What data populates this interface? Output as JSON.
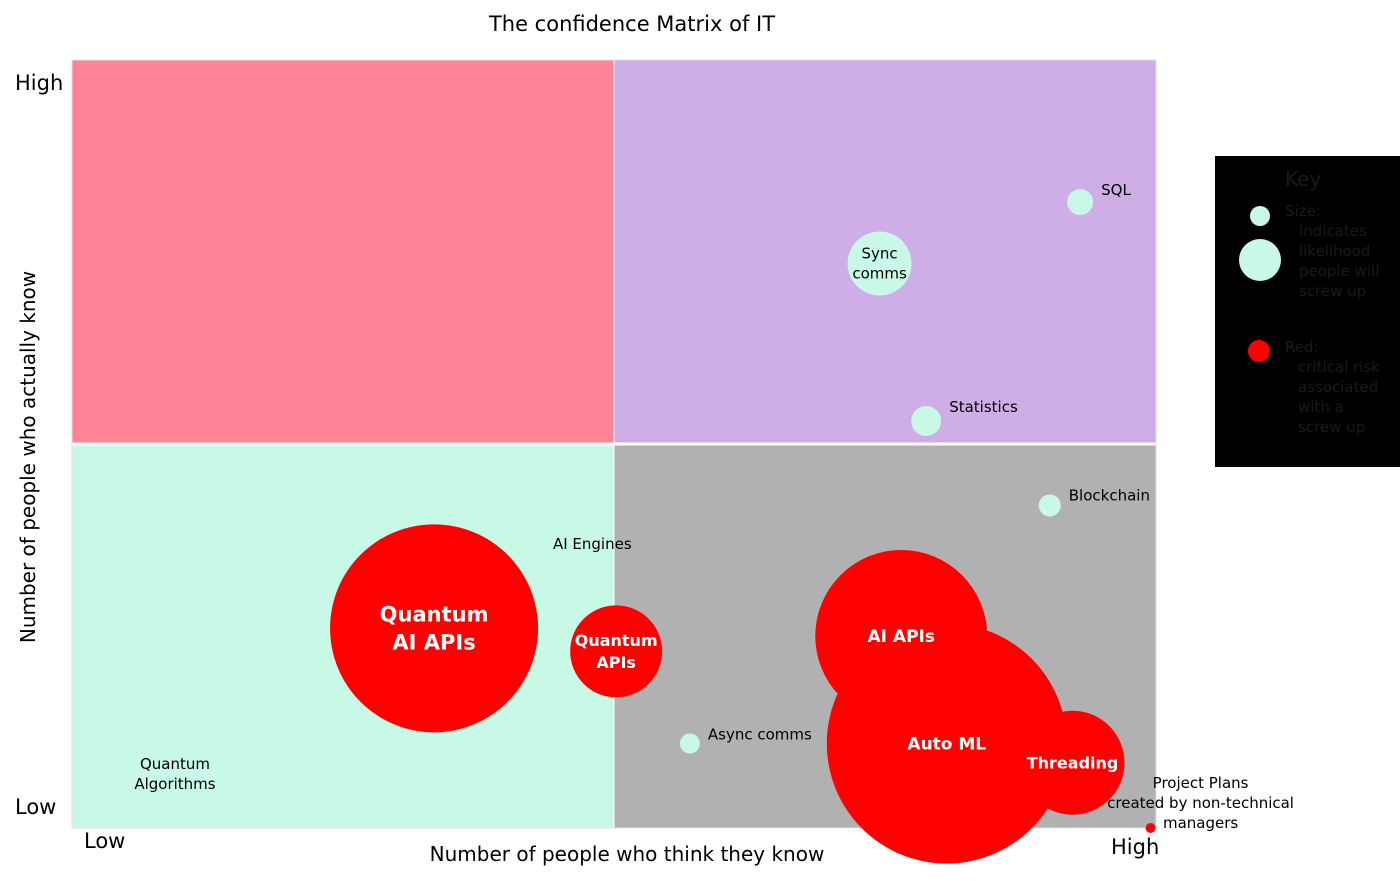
{
  "chart_data": {
    "type": "scatter",
    "title": "The confidence Matrix of IT",
    "xlabel": "Number of people who think they know",
    "ylabel": "Number of people who actually know",
    "x_ticks": {
      "low": "Low",
      "high": "High"
    },
    "y_ticks": {
      "low": "Low",
      "high": "High"
    },
    "xlim": [
      0,
      100
    ],
    "ylim": [
      0,
      100
    ],
    "quadrants": [
      {
        "x_range": [
          0,
          50
        ],
        "y_range": [
          50,
          100
        ],
        "color": "#ff8596"
      },
      {
        "x_range": [
          50,
          100
        ],
        "y_range": [
          50,
          100
        ],
        "color": "#cfade6"
      },
      {
        "x_range": [
          0,
          50
        ],
        "y_range": [
          0,
          50
        ],
        "color": "#c8f9e7"
      },
      {
        "x_range": [
          50,
          100
        ],
        "y_range": [
          0,
          50
        ],
        "color": "#b1b1b1"
      }
    ],
    "points": [
      {
        "label": "SQL",
        "lines": [
          "SQL"
        ],
        "x": 93,
        "y": 81.5,
        "size": 13,
        "critical": false,
        "label_pos": "right"
      },
      {
        "label": "Sync comms",
        "lines": [
          "Sync",
          "comms"
        ],
        "x": 74.5,
        "y": 73.5,
        "size": 32,
        "critical": false,
        "label_pos": "center"
      },
      {
        "label": "Statistics",
        "lines": [
          "Statistics"
        ],
        "x": 78.8,
        "y": 53,
        "size": 15,
        "critical": false,
        "label_pos": "right"
      },
      {
        "label": "Blockchain",
        "lines": [
          "Blockchain"
        ],
        "x": 90.2,
        "y": 42,
        "size": 11,
        "critical": false,
        "label_pos": "right"
      },
      {
        "label": "Async comms",
        "lines": [
          "Async comms"
        ],
        "x": 57,
        "y": 11,
        "size": 10,
        "critical": false,
        "label_pos": "right"
      },
      {
        "label": "AI Engines",
        "lines": [
          "AI Engines"
        ],
        "x": 48,
        "y": 37,
        "size": 0,
        "critical": false,
        "label_pos": "center"
      },
      {
        "label": "Quantum Algorithms",
        "lines": [
          "Quantum",
          "Algorithms"
        ],
        "x": 9.5,
        "y": 7,
        "size": 0,
        "critical": false,
        "label_pos": "center"
      },
      {
        "label": "Quantum AI APIs",
        "lines": [
          "Quantum",
          "AI APIs"
        ],
        "x": 33.4,
        "y": 26,
        "size": 104,
        "critical": true,
        "label_pos": "center",
        "font": 21
      },
      {
        "label": "Quantum APIs",
        "lines": [
          "Quantum",
          "APIs"
        ],
        "x": 50.2,
        "y": 23,
        "size": 46,
        "critical": true,
        "label_pos": "center",
        "font": 16
      },
      {
        "label": "Auto ML",
        "lines": [
          "Auto ML"
        ],
        "x": 80.7,
        "y": 11,
        "size": 120,
        "critical": true,
        "label_pos": "center",
        "font": 17
      },
      {
        "label": "AI APIs",
        "lines": [
          "AI APIs"
        ],
        "x": 76.5,
        "y": 25,
        "size": 86,
        "critical": true,
        "label_pos": "center",
        "font": 17
      },
      {
        "label": "Threading",
        "lines": [
          "Threading"
        ],
        "x": 92.3,
        "y": 8.5,
        "size": 52,
        "critical": true,
        "label_pos": "center",
        "font": 16
      },
      {
        "label": "Project Plans created by non-technical managers",
        "lines": [
          "Project Plans",
          "created by non-technical",
          "managers"
        ],
        "x": 99.5,
        "y": 0,
        "size": 5,
        "critical": true,
        "label_pos": "label-above"
      }
    ],
    "legend": {
      "title": "Key",
      "size_text": [
        "Size:",
        "indicates",
        "likelihood",
        "people will",
        "screw up"
      ],
      "red_text": [
        "Red:",
        "critical risk",
        "associated",
        "with a",
        "screw up"
      ],
      "background": "#000000"
    }
  },
  "colors": {
    "normal_bubble": "#c8f9e7",
    "critical_bubble": "#ff0000"
  }
}
